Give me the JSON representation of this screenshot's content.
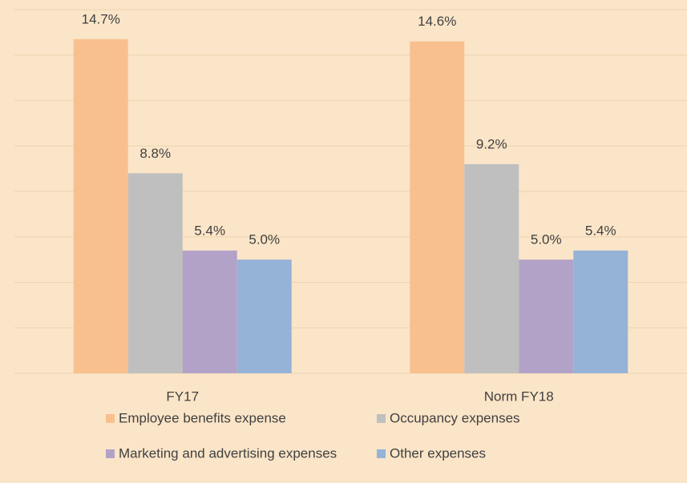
{
  "chart_data": {
    "type": "bar",
    "categories": [
      "FY17",
      "Norm FY18"
    ],
    "series": [
      {
        "name": "Employee benefits expense",
        "color": "#f9c08f",
        "values": [
          14.7,
          14.6
        ],
        "value_labels": [
          "14.7%",
          "14.6%"
        ]
      },
      {
        "name": "Occupancy expenses",
        "color": "#bfbfbf",
        "values": [
          8.8,
          9.2
        ],
        "value_labels": [
          "8.8%",
          "9.2%"
        ]
      },
      {
        "name": "Marketing and advertising expenses",
        "color": "#b3a2c7",
        "values": [
          5.4,
          5.0
        ],
        "value_labels": [
          "5.4%",
          "5.0%"
        ]
      },
      {
        "name": "Other expenses",
        "color": "#95b3d7",
        "values": [
          5.0,
          5.4
        ],
        "value_labels": [
          "5.0%",
          "5.4%"
        ]
      }
    ],
    "ylim": [
      0,
      16
    ],
    "yticks": [
      0,
      2,
      4,
      6,
      8,
      10,
      12,
      14,
      16
    ],
    "grid": true
  }
}
